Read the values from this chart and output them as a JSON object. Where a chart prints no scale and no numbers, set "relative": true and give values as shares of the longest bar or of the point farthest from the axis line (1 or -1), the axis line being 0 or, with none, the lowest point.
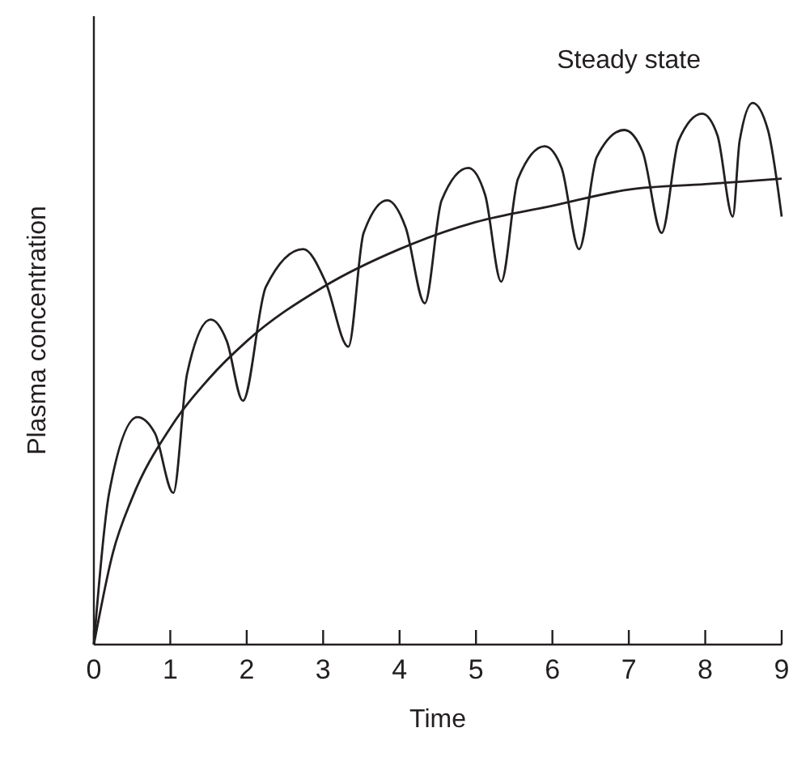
{
  "chart_data": {
    "type": "line",
    "relative": true,
    "xlabel": "Time",
    "ylabel": "Plasma concentration",
    "annotations": [
      "Steady state"
    ],
    "xlim": [
      0,
      9
    ],
    "xticks": [
      0,
      1,
      2,
      3,
      4,
      5,
      6,
      7,
      8,
      9
    ],
    "grid": false,
    "marker": "none",
    "line_style": "solid",
    "series": [
      {
        "color": "#231f20",
        "x": [
          0,
          0.2,
          0.57,
          0.8,
          1.04,
          1.22,
          1.53,
          1.74,
          1.95,
          2.25,
          2.74,
          3.03,
          3.33,
          3.53,
          3.84,
          4.08,
          4.33,
          4.55,
          4.9,
          5.12,
          5.33,
          5.55,
          5.9,
          6.12,
          6.35,
          6.58,
          6.94,
          7.18,
          7.43,
          7.65,
          7.96,
          8.16,
          8.36,
          8.45,
          8.62,
          8.82,
          9
        ],
        "values": [
          0,
          0.28,
          0.42,
          0.39,
          0.28,
          0.5,
          0.6,
          0.56,
          0.45,
          0.66,
          0.73,
          0.67,
          0.55,
          0.76,
          0.82,
          0.77,
          0.63,
          0.82,
          0.88,
          0.83,
          0.67,
          0.86,
          0.92,
          0.88,
          0.73,
          0.9,
          0.95,
          0.91,
          0.76,
          0.93,
          0.98,
          0.94,
          0.79,
          0.93,
          1,
          0.95,
          0.79
        ]
      },
      {
        "color": "#231f20",
        "x": [
          0,
          0.25,
          0.5,
          1,
          1.5,
          2,
          3,
          4,
          5,
          6,
          7,
          8,
          9
        ],
        "values": [
          0,
          0.17,
          0.27,
          0.4,
          0.49,
          0.56,
          0.66,
          0.73,
          0.78,
          0.81,
          0.84,
          0.85,
          0.86
        ]
      }
    ]
  }
}
